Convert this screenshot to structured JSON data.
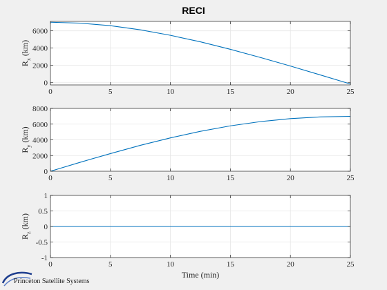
{
  "figure": {
    "title": "RECI",
    "xlabel": "Time (min)",
    "logo_text": "Princeton Satellite Systems"
  },
  "colors": {
    "line": "#0072bd",
    "axes_bg": "#ffffff",
    "figure_bg": "#f0f0f0",
    "grid": "#e6e6e6"
  },
  "chart_data": [
    {
      "type": "line",
      "ylabel_main": "R",
      "ylabel_sub": "x",
      "ylabel_unit": " (km)",
      "xlim": [
        0,
        25
      ],
      "ylim": [
        -300,
        7100
      ],
      "xticks": [
        0,
        5,
        10,
        15,
        20,
        25
      ],
      "yticks": [
        0,
        2000,
        4000,
        6000
      ],
      "grid": true,
      "series": [
        {
          "x": [
            0,
            2.5,
            5,
            7.5,
            10,
            12.5,
            15,
            17.5,
            20,
            22.5,
            25
          ],
          "y": [
            7000,
            6900,
            6600,
            6120,
            5480,
            4720,
            3850,
            2900,
            1900,
            860,
            -190
          ]
        }
      ]
    },
    {
      "type": "line",
      "ylabel_main": "R",
      "ylabel_sub": "y",
      "ylabel_unit": " (km)",
      "xlim": [
        0,
        25
      ],
      "ylim": [
        0,
        8000
      ],
      "xticks": [
        0,
        5,
        10,
        15,
        20,
        25
      ],
      "yticks": [
        0,
        2000,
        4000,
        6000,
        8000
      ],
      "grid": true,
      "series": [
        {
          "x": [
            0,
            2.5,
            5,
            7.5,
            10,
            12.5,
            15,
            17.5,
            20,
            22.5,
            25
          ],
          "y": [
            0,
            1150,
            2250,
            3300,
            4250,
            5080,
            5780,
            6320,
            6700,
            6920,
            6990
          ]
        }
      ]
    },
    {
      "type": "line",
      "ylabel_main": "R",
      "ylabel_sub": "z",
      "ylabel_unit": " (km)",
      "xlim": [
        0,
        25
      ],
      "ylim": [
        -1,
        1
      ],
      "xticks": [
        0,
        5,
        10,
        15,
        20,
        25
      ],
      "yticks": [
        -1,
        -0.5,
        0,
        0.5,
        1
      ],
      "grid": true,
      "series": [
        {
          "x": [
            0,
            25
          ],
          "y": [
            0,
            0
          ]
        }
      ]
    }
  ]
}
